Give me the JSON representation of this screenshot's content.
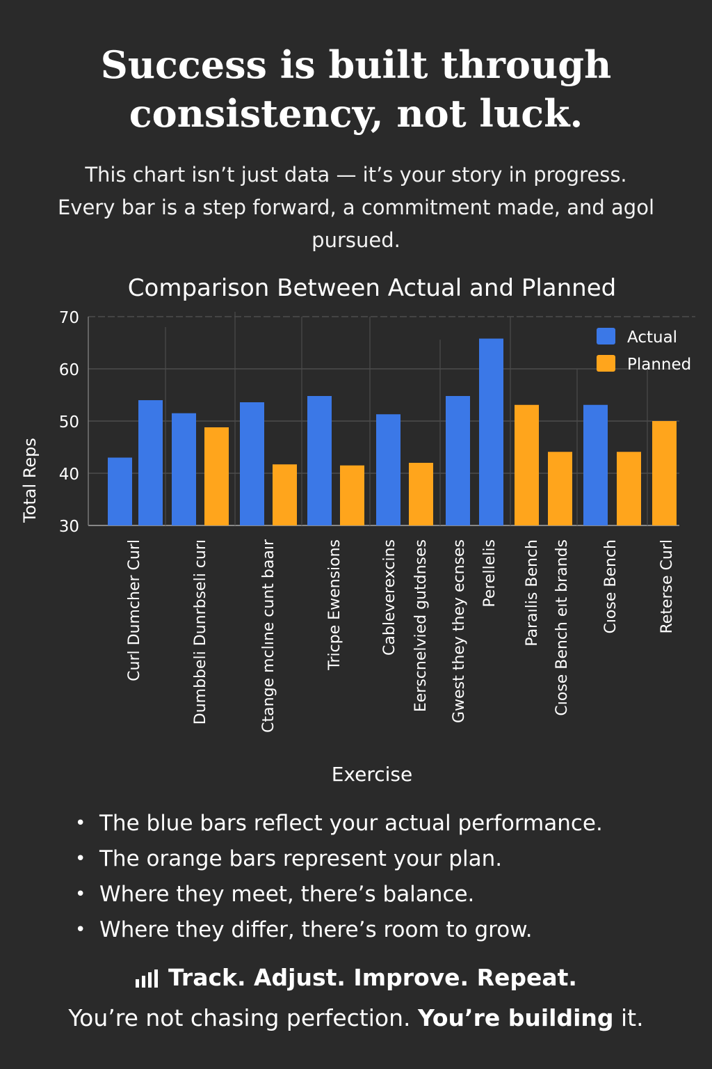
{
  "headline": {
    "line1": "Success is built through",
    "line2": "consistency, not luck."
  },
  "intro": {
    "line1": "This chart isn’t just data — it’s your story in progress.",
    "line2": "Every bar is a step forward, a commitment made, and agol",
    "line3": "pursued."
  },
  "chart_data": {
    "type": "bar",
    "title": "Comparison Between Actual and Planned",
    "xlabel": "Exercise",
    "ylabel": "Total Reps",
    "ylim": [
      30,
      70
    ],
    "yticks": [
      "30",
      "40",
      "50",
      "60",
      "70"
    ],
    "grid": true,
    "legend_position": "top-right",
    "categories": [
      "Curl Dumcher Curl",
      "Dumbbeli Dunrbseli curı",
      "Ctange mclıne cunt baaır",
      "Tricpe Ewensions",
      "Cableverexcins",
      "Eerscnelvied gutdnses",
      "Gwest they they ecnses",
      "Perellelis",
      "Paraılis Bench",
      "Cıose Bench eıt brands",
      "Cıose Bench",
      "Reterse Curl"
    ],
    "bars": [
      {
        "series": "Actual",
        "value": 43
      },
      {
        "series": "Actual",
        "value": 54
      },
      {
        "series": "Actual",
        "value": 51.5
      },
      {
        "series": "Planned",
        "value": 48.8
      },
      {
        "series": "Actual",
        "value": 53.6
      },
      {
        "series": "Planned",
        "value": 41.7
      },
      {
        "series": "Actual",
        "value": 54.8
      },
      {
        "series": "Planned",
        "value": 41.5
      },
      {
        "series": "Actual",
        "value": 51.3
      },
      {
        "series": "Planned",
        "value": 42
      },
      {
        "series": "Actual",
        "value": 54.8
      },
      {
        "series": "Actual",
        "value": 65.8
      },
      {
        "series": "Planned",
        "value": 53.1
      },
      {
        "series": "Planned",
        "value": 44.1
      },
      {
        "series": "Actual",
        "value": 53.1
      },
      {
        "series": "Planned",
        "value": 44.1
      },
      {
        "series": "Planned",
        "value": 50
      }
    ],
    "series": [
      {
        "name": "Actual",
        "color": "#3b78e7"
      },
      {
        "name": "Planned",
        "color": "#ffa51c"
      }
    ]
  },
  "bullets": [
    "The blue bars reflect your actual performance.",
    "The orange bars represent your plan.",
    "Where they meet, there’s balance.",
    "Where they differ, there’s room to grow."
  ],
  "bullet_glyph": "•",
  "tagline": {
    "icon": "bar-chart-icon",
    "text": "Track. Adjust. Improve. Repeat."
  },
  "closing": {
    "part1": "You’re not chasing perfection. ",
    "part2": "You’re building",
    "part3": " it."
  }
}
